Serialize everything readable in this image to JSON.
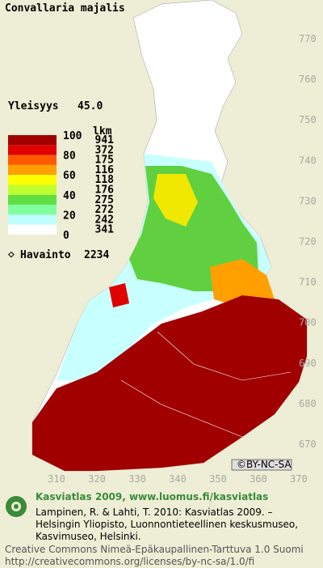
{
  "title": "Convallaria majalis",
  "frequency": {
    "label": "Yleisyys",
    "value": "45.0"
  },
  "legend": {
    "scale": [
      "100",
      "80",
      "60",
      "40",
      "20",
      "0"
    ],
    "count_header": "lkm",
    "counts": [
      "941",
      "372",
      "175",
      "116",
      "118",
      "176",
      "275",
      "272",
      "242",
      "341"
    ],
    "colors": [
      "#a00000",
      "#e00000",
      "#ff5a00",
      "#ffa000",
      "#ffff00",
      "#c0ff30",
      "#60e040",
      "#80ffa0",
      "#c0ffff",
      "#ffffff"
    ]
  },
  "observations": {
    "label": "Havainto",
    "value": "2234"
  },
  "y_labels": [
    "770",
    "760",
    "750",
    "740",
    "730",
    "720",
    "710",
    "700",
    "690",
    "680",
    "670"
  ],
  "x_labels": [
    "310",
    "320",
    "330",
    "340",
    "350",
    "360",
    "370"
  ],
  "license_badge": "BY-NC-SA",
  "footer": {
    "heading": "Kasviatlas 2009, www.luomus.fi/kasviatlas",
    "citation": [
      "Lampinen, R. & Lahti, T. 2010: Kasviatlas 2009. –",
      "Helsingin Yliopisto, Luonnontieteellinen keskusmuseo,",
      "Kasvimuseo, Helsinki."
    ],
    "license": [
      "Creative Commons Nimeä-Epäkaupallinen-Tarttuva 1.0 Suomi",
      "http://creativecommons.org/licenses/by-nc-sa/1.0/fi"
    ]
  }
}
